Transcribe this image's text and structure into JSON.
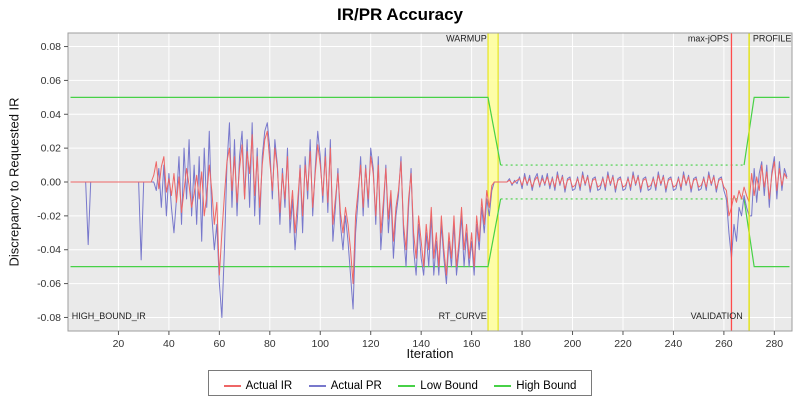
{
  "title": "IR/PR Accuracy",
  "axes": {
    "x_label": "Iteration",
    "y_label": "Discrepancy to Requested IR"
  },
  "legend": {
    "items": [
      {
        "label": "Actual IR",
        "color": "#EE6666"
      },
      {
        "label": "Actual PR",
        "color": "#7878CC"
      },
      {
        "label": "Low Bound",
        "color": "#47D147"
      },
      {
        "label": "High Bound",
        "color": "#47D147"
      }
    ]
  },
  "colors": {
    "plot_background": "#EAEAEA",
    "gridline": "#FFFFFF",
    "plot_border": "#9E9E9E",
    "tick_text": "#333333",
    "annotation_text": "#222222",
    "warmup_band_fill": "#FFFFA0",
    "warmup_band_edge": "#E3E300",
    "validation_line": "#FF4C4C",
    "profile_line": "#E3E300"
  },
  "chart_data": {
    "type": "line",
    "title": "IR/PR Accuracy",
    "xlabel": "Iteration",
    "ylabel": "Discrepancy to Requested IR",
    "xlim": [
      0,
      287
    ],
    "ylim": [
      -0.088,
      0.088
    ],
    "x_ticks": [
      20,
      40,
      60,
      80,
      100,
      120,
      140,
      160,
      180,
      200,
      220,
      240,
      260,
      280
    ],
    "y_ticks": [
      -0.08,
      -0.06,
      -0.04,
      -0.02,
      0,
      0.02,
      0.04,
      0.06,
      0.08
    ],
    "x_start": 1,
    "series": [
      {
        "name": "Actual PR",
        "color": "#7878CC",
        "values": [
          0,
          0,
          0,
          0,
          0,
          0,
          0,
          -0.037,
          0,
          0,
          0,
          0,
          0,
          0,
          0,
          0,
          0,
          0,
          0,
          0,
          0,
          0,
          0,
          0,
          0,
          0,
          0,
          0,
          -0.046,
          0,
          0,
          0,
          0,
          0,
          -0.005,
          0.008,
          -0.015,
          0.01,
          -0.02,
          0.005,
          -0.015,
          -0.03,
          -0.01,
          0.015,
          -0.025,
          0.02,
          -0.01,
          0.025,
          -0.02,
          0.01,
          -0.025,
          0.015,
          -0.035,
          0.02,
          -0.015,
          0.03,
          -0.02,
          -0.04,
          -0.025,
          -0.06,
          -0.08,
          -0.04,
          0.01,
          0.035,
          -0.015,
          0.025,
          -0.02,
          0.015,
          0.03,
          -0.01,
          0.025,
          -0.015,
          0.035,
          -0.02,
          0.02,
          -0.025,
          0.015,
          0.03,
          0.035,
          0.02,
          -0.01,
          0.025,
          0.01,
          -0.025,
          0.008,
          -0.015,
          0.02,
          -0.03,
          -0.01,
          -0.04,
          -0.02,
          0.01,
          -0.03,
          0.015,
          -0.01,
          0.025,
          -0.02,
          0.008,
          0.03,
          0.015,
          -0.012,
          0.02,
          -0.018,
          0.025,
          -0.035,
          -0.015,
          0.008,
          -0.025,
          -0.04,
          -0.02,
          -0.035,
          -0.055,
          -0.075,
          -0.03,
          -0.01,
          0.015,
          -0.02,
          0.01,
          -0.015,
          0.02,
          0.008,
          -0.025,
          0.015,
          -0.04,
          -0.018,
          0.01,
          -0.03,
          -0.008,
          -0.045,
          -0.02,
          -0.008,
          0.015,
          -0.03,
          -0.05,
          -0.015,
          0.008,
          -0.04,
          -0.055,
          -0.025,
          -0.045,
          -0.055,
          -0.03,
          -0.05,
          -0.02,
          -0.055,
          -0.035,
          -0.055,
          -0.025,
          -0.045,
          -0.06,
          -0.035,
          -0.05,
          -0.025,
          -0.055,
          -0.04,
          -0.02,
          -0.05,
          -0.03,
          -0.05,
          -0.035,
          -0.055,
          -0.025,
          -0.04,
          -0.015,
          -0.03,
          -0.01,
          -0.02,
          -0.005,
          0,
          0,
          0,
          0,
          0,
          0,
          0.002,
          -0.002,
          0.001,
          -0.001,
          0.003,
          -0.004,
          0.005,
          -0.002,
          0.004,
          -0.005,
          0.002,
          0.005,
          -0.003,
          0.004,
          -0.002,
          0.005,
          -0.004,
          0.003,
          -0.005,
          0.006,
          -0.002,
          0.004,
          -0.006,
          0.002,
          0.003,
          -0.005,
          -0.004,
          0.003,
          -0.005,
          0.006,
          -0.002,
          0.004,
          -0.006,
          0.002,
          0.003,
          -0.005,
          -0.004,
          0.003,
          -0.005,
          0.006,
          -0.002,
          0.004,
          -0.006,
          0.002,
          0.003,
          -0.005,
          -0.004,
          0.003,
          -0.005,
          0.006,
          -0.002,
          0.004,
          -0.006,
          0.002,
          0.003,
          -0.005,
          -0.004,
          0.003,
          -0.005,
          0.006,
          -0.002,
          0.004,
          -0.006,
          0.002,
          0.003,
          -0.005,
          -0.004,
          0.003,
          -0.005,
          0.006,
          -0.002,
          0.004,
          -0.006,
          0.002,
          0.003,
          -0.005,
          -0.004,
          0.003,
          -0.005,
          0.006,
          -0.002,
          0.004,
          -0.006,
          0.002,
          0.003,
          -0.005,
          -0.01,
          -0.03,
          -0.045,
          -0.025,
          -0.035,
          -0.015,
          -0.02,
          -0.008,
          -0.015,
          -0.02,
          -0.02,
          0.008,
          -0.012,
          0.005,
          0.012,
          -0.008,
          0.01,
          -0.015,
          0.006,
          0.015,
          -0.01,
          0.012,
          -0.005,
          0.008,
          0.003
        ]
      },
      {
        "name": "Actual IR",
        "color": "#EE6666",
        "values": [
          0,
          0,
          0,
          0,
          0,
          0,
          0,
          0,
          0,
          0,
          0,
          0,
          0,
          0,
          0,
          0,
          0,
          0,
          0,
          0,
          0,
          0,
          0,
          0,
          0,
          0,
          0,
          0,
          0,
          0,
          0,
          0,
          0,
          0.004,
          0.012,
          -0.004,
          0.009,
          0.015,
          -0.006,
          0.002,
          -0.008,
          0.005,
          -0.012,
          0.003,
          -0.018,
          -0.005,
          0.008,
          -0.002,
          -0.015,
          -0.007,
          0.004,
          -0.01,
          0.006,
          -0.02,
          -0.008,
          0.01,
          -0.005,
          -0.025,
          -0.012,
          -0.055,
          -0.03,
          -0.008,
          0.012,
          0.02,
          -0.005,
          0.015,
          -0.012,
          0.008,
          0.022,
          -0.01,
          0.018,
          0.005,
          0.028,
          -0.008,
          0.015,
          -0.015,
          0.01,
          0.025,
          0.03,
          0.012,
          -0.005,
          0.02,
          0.008,
          -0.018,
          0.005,
          -0.01,
          0.015,
          -0.022,
          -0.005,
          -0.03,
          -0.012,
          0.008,
          -0.02,
          0.01,
          -0.005,
          0.018,
          -0.015,
          0.005,
          0.022,
          0.01,
          -0.008,
          0.015,
          -0.012,
          0.02,
          -0.025,
          -0.01,
          0.005,
          -0.018,
          -0.03,
          -0.015,
          -0.025,
          -0.04,
          -0.06,
          -0.02,
          -0.005,
          0.01,
          -0.015,
          0.008,
          -0.01,
          0.015,
          0.005,
          -0.02,
          0.01,
          -0.03,
          -0.012,
          0.008,
          -0.022,
          -0.005,
          -0.035,
          -0.015,
          -0.005,
          0.012,
          -0.025,
          -0.04,
          -0.01,
          0.005,
          -0.03,
          -0.045,
          -0.02,
          -0.035,
          -0.05,
          -0.025,
          -0.04,
          -0.015,
          -0.045,
          -0.03,
          -0.05,
          -0.02,
          -0.04,
          -0.055,
          -0.03,
          -0.045,
          -0.02,
          -0.05,
          -0.035,
          -0.015,
          -0.04,
          -0.025,
          -0.045,
          -0.03,
          -0.05,
          -0.02,
          -0.035,
          -0.01,
          -0.025,
          -0.005,
          -0.015,
          -0.002,
          0,
          0,
          0,
          0,
          0,
          0,
          0.001,
          -0.001,
          0,
          0.001,
          0.002,
          -0.002,
          0.003,
          -0.001,
          0.002,
          -0.003,
          0.001,
          0.003,
          -0.002,
          0.002,
          -0.001,
          0.003,
          -0.002,
          0.002,
          -0.003,
          0.004,
          -0.001,
          0.003,
          -0.004,
          0.001,
          0.002,
          -0.003,
          -0.002,
          0.002,
          -0.003,
          0.004,
          -0.001,
          0.003,
          -0.004,
          0.001,
          0.002,
          -0.003,
          -0.002,
          0.002,
          -0.003,
          0.004,
          -0.001,
          0.003,
          -0.004,
          0.001,
          0.002,
          -0.003,
          -0.002,
          0.002,
          -0.003,
          0.004,
          -0.001,
          0.003,
          -0.004,
          0.001,
          0.002,
          -0.003,
          -0.002,
          0.002,
          -0.003,
          0.004,
          -0.001,
          0.003,
          -0.004,
          0.001,
          0.002,
          -0.003,
          -0.002,
          0.002,
          -0.003,
          0.004,
          -0.001,
          0.003,
          -0.004,
          0.001,
          0.002,
          -0.003,
          -0.002,
          0.002,
          -0.003,
          0.004,
          -0.001,
          0.003,
          -0.004,
          0.001,
          0.002,
          -0.003,
          -0.005,
          -0.02,
          -0.015,
          -0.008,
          -0.012,
          -0.005,
          -0.01,
          -0.003,
          -0.008,
          -0.012,
          0.005,
          -0.008,
          0.003,
          -0.005,
          0.01,
          -0.003,
          0.006,
          -0.01,
          0.004,
          0.012,
          -0.005,
          0.008,
          -0.002,
          0.005,
          0.002
        ]
      }
    ],
    "bounds": {
      "high": {
        "name": "High Bound",
        "color": "#47D147",
        "segments": [
          {
            "dashed": false,
            "points": [
              [
                1,
                0.05
              ],
              [
                166.5,
                0.05
              ],
              [
                171.5,
                0.01
              ]
            ]
          },
          {
            "dashed": true,
            "points": [
              [
                171.5,
                0.01
              ],
              [
                268,
                0.01
              ]
            ]
          },
          {
            "dashed": false,
            "points": [
              [
                268,
                0.01
              ],
              [
                272,
                0.05
              ],
              [
                286,
                0.05
              ]
            ]
          }
        ]
      },
      "low": {
        "name": "Low Bound",
        "color": "#47D147",
        "segments": [
          {
            "dashed": false,
            "points": [
              [
                1,
                -0.05
              ],
              [
                166.5,
                -0.05
              ],
              [
                171.5,
                -0.01
              ]
            ]
          },
          {
            "dashed": true,
            "points": [
              [
                171.5,
                -0.01
              ],
              [
                268,
                -0.01
              ]
            ]
          },
          {
            "dashed": false,
            "points": [
              [
                268,
                -0.01
              ],
              [
                272,
                -0.05
              ],
              [
                286,
                -0.05
              ]
            ]
          }
        ]
      }
    },
    "markers": [
      {
        "type": "band",
        "x0": 166.5,
        "x1": 170.5,
        "fill": "#FFFFA0",
        "edge": "#E3E300"
      },
      {
        "type": "line",
        "x": 263,
        "color": "#FF4C4C"
      },
      {
        "type": "line",
        "x": 270,
        "color": "#E3E300"
      }
    ],
    "annotations": [
      {
        "text": "HIGH_BOUND_IR",
        "x": 1.5,
        "y": -0.081,
        "anchor": "start"
      },
      {
        "text": "WARMUP",
        "x": 166,
        "y": 0.083,
        "anchor": "end"
      },
      {
        "text": "RT_CURVE",
        "x": 166,
        "y": -0.081,
        "anchor": "end"
      },
      {
        "text": "max-jOPS",
        "x": 262,
        "y": 0.083,
        "anchor": "end"
      },
      {
        "text": "VALIDATION",
        "x": 267.5,
        "y": -0.081,
        "anchor": "end"
      },
      {
        "text": "PROFILE",
        "x": 271.5,
        "y": 0.083,
        "anchor": "start"
      }
    ],
    "grid": true,
    "legend_position": "bottom"
  }
}
